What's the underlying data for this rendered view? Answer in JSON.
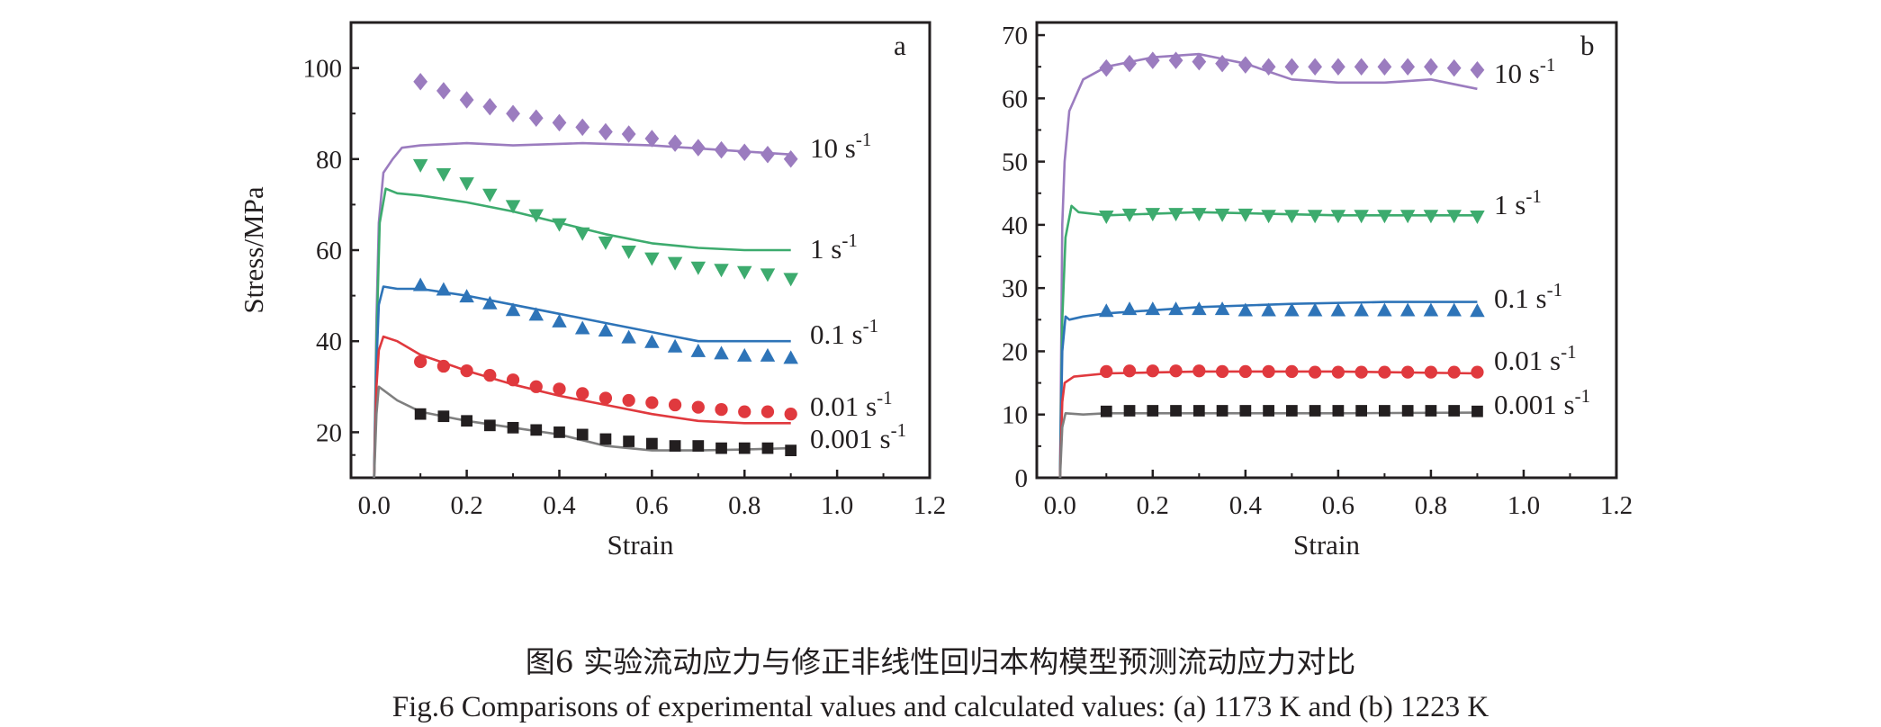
{
  "caption": {
    "chinese": "图6  实验流动应力与修正非线性回归本构模型预测流动应力对比",
    "english": "Fig.6  Comparisons of experimental values and calculated values: (a) 1173 K and (b) 1223 K"
  },
  "colors": {
    "rate_10": "#9b7cbf",
    "rate_1": "#3dab6e",
    "rate_0_1": "#2e74b8",
    "rate_0_01": "#e0393e",
    "rate_0_001": "#231f20",
    "curve_0_001": "#7f7f7f"
  },
  "chart_data": [
    {
      "type": "scatter",
      "panel": "a",
      "xlabel": "Strain",
      "ylabel": "Stress/MPa",
      "xlim": [
        -0.05,
        1.2
      ],
      "ylim": [
        10,
        110
      ],
      "xticks": [
        "0.0",
        "0.2",
        "0.4",
        "0.6",
        "0.8",
        "1.0",
        "1.2"
      ],
      "yticks": [
        "20",
        "40",
        "60",
        "80",
        "100"
      ],
      "series": [
        {
          "label": "10 s",
          "exp": "-1",
          "marker": "diamond",
          "color": "#9b7cbf",
          "x": [
            0.1,
            0.15,
            0.2,
            0.25,
            0.3,
            0.35,
            0.4,
            0.45,
            0.5,
            0.55,
            0.6,
            0.65,
            0.7,
            0.75,
            0.8,
            0.85,
            0.9
          ],
          "y": [
            97,
            95,
            93,
            91.5,
            90,
            89,
            88,
            87,
            86,
            85.5,
            84.5,
            83.5,
            82.5,
            82,
            81.5,
            81,
            80
          ],
          "curve": [
            [
              0,
              10
            ],
            [
              0.005,
              45
            ],
            [
              0.01,
              66
            ],
            [
              0.02,
              77
            ],
            [
              0.04,
              80
            ],
            [
              0.06,
              82.5
            ],
            [
              0.1,
              83
            ],
            [
              0.2,
              83.5
            ],
            [
              0.3,
              83
            ],
            [
              0.45,
              83.5
            ],
            [
              0.6,
              83
            ],
            [
              0.75,
              82
            ],
            [
              0.9,
              81
            ]
          ]
        },
        {
          "label": "1 s",
          "exp": "-1",
          "marker": "triangle-down",
          "color": "#3dab6e",
          "x": [
            0.1,
            0.15,
            0.2,
            0.25,
            0.3,
            0.35,
            0.4,
            0.45,
            0.5,
            0.55,
            0.6,
            0.65,
            0.7,
            0.75,
            0.8,
            0.85,
            0.9
          ],
          "y": [
            78.5,
            76.5,
            74.5,
            72,
            69.5,
            67.5,
            65.5,
            63.5,
            61.5,
            59.5,
            58,
            57,
            56,
            55.5,
            55,
            54.5,
            53.5
          ],
          "curve": [
            [
              0,
              10
            ],
            [
              0.005,
              40
            ],
            [
              0.012,
              66
            ],
            [
              0.025,
              73.5
            ],
            [
              0.05,
              72.5
            ],
            [
              0.1,
              72
            ],
            [
              0.2,
              70.5
            ],
            [
              0.3,
              68.5
            ],
            [
              0.4,
              66
            ],
            [
              0.5,
              63.5
            ],
            [
              0.6,
              61.5
            ],
            [
              0.7,
              60.5
            ],
            [
              0.8,
              60
            ],
            [
              0.9,
              60
            ]
          ]
        },
        {
          "label": "0.1 s",
          "exp": "-1",
          "marker": "triangle-up",
          "color": "#2e74b8",
          "x": [
            0.1,
            0.15,
            0.2,
            0.25,
            0.3,
            0.35,
            0.4,
            0.45,
            0.5,
            0.55,
            0.6,
            0.65,
            0.7,
            0.75,
            0.8,
            0.85,
            0.9
          ],
          "y": [
            52.5,
            51.5,
            50,
            48.5,
            47,
            46,
            44.5,
            43,
            42.5,
            41,
            40,
            39,
            38,
            37.5,
            37,
            37,
            36.5
          ],
          "curve": [
            [
              0,
              10
            ],
            [
              0.005,
              35
            ],
            [
              0.01,
              48
            ],
            [
              0.02,
              52
            ],
            [
              0.05,
              51.5
            ],
            [
              0.1,
              51.5
            ],
            [
              0.2,
              50
            ],
            [
              0.3,
              48
            ],
            [
              0.4,
              46
            ],
            [
              0.5,
              44
            ],
            [
              0.6,
              42
            ],
            [
              0.7,
              40
            ],
            [
              0.8,
              40
            ],
            [
              0.9,
              40
            ]
          ]
        },
        {
          "label": "0.01 s",
          "exp": "-1",
          "marker": "circle",
          "color": "#e0393e",
          "x": [
            0.1,
            0.15,
            0.2,
            0.25,
            0.3,
            0.35,
            0.4,
            0.45,
            0.5,
            0.55,
            0.6,
            0.65,
            0.7,
            0.75,
            0.8,
            0.85,
            0.9
          ],
          "y": [
            35.5,
            34.5,
            33.5,
            32.5,
            31.5,
            30,
            29.5,
            28.5,
            27.5,
            27,
            26.5,
            26,
            25.5,
            25,
            24.5,
            24.5,
            24
          ],
          "curve": [
            [
              0,
              10
            ],
            [
              0.005,
              30
            ],
            [
              0.01,
              38
            ],
            [
              0.02,
              41
            ],
            [
              0.05,
              40
            ],
            [
              0.1,
              37
            ],
            [
              0.2,
              33.5
            ],
            [
              0.3,
              30.5
            ],
            [
              0.4,
              28
            ],
            [
              0.5,
              26
            ],
            [
              0.6,
              24
            ],
            [
              0.7,
              22.5
            ],
            [
              0.8,
              22
            ],
            [
              0.9,
              22
            ]
          ]
        },
        {
          "label": "0.001 s",
          "exp": "-1",
          "marker": "square",
          "color": "#231f20",
          "curve_color": "#7f7f7f",
          "x": [
            0.1,
            0.15,
            0.2,
            0.25,
            0.3,
            0.35,
            0.4,
            0.45,
            0.5,
            0.55,
            0.6,
            0.65,
            0.7,
            0.75,
            0.8,
            0.85,
            0.9
          ],
          "y": [
            24,
            23.5,
            22.5,
            21.5,
            21,
            20.5,
            20,
            19.5,
            18.5,
            18,
            17.5,
            17,
            17,
            16.5,
            16.5,
            16.5,
            16
          ],
          "curve": [
            [
              0,
              10
            ],
            [
              0.005,
              24
            ],
            [
              0.01,
              30
            ],
            [
              0.05,
              27
            ],
            [
              0.1,
              24.5
            ],
            [
              0.2,
              22.5
            ],
            [
              0.3,
              21
            ],
            [
              0.4,
              19.5
            ],
            [
              0.5,
              17
            ],
            [
              0.6,
              16
            ],
            [
              0.7,
              16
            ],
            [
              0.8,
              16.2
            ],
            [
              0.9,
              16.5
            ]
          ]
        }
      ]
    },
    {
      "type": "scatter",
      "panel": "b",
      "xlabel": "Strain",
      "ylabel": "",
      "xlim": [
        -0.05,
        1.2
      ],
      "ylim": [
        0,
        72
      ],
      "xticks": [
        "0.0",
        "0.2",
        "0.4",
        "0.6",
        "0.8",
        "1.0",
        "1.2"
      ],
      "yticks": [
        "0",
        "10",
        "20",
        "30",
        "40",
        "50",
        "60",
        "70"
      ],
      "series": [
        {
          "label": "10 s",
          "exp": "-1",
          "marker": "diamond",
          "color": "#9b7cbf",
          "x": [
            0.1,
            0.15,
            0.2,
            0.25,
            0.3,
            0.35,
            0.4,
            0.45,
            0.5,
            0.55,
            0.6,
            0.65,
            0.7,
            0.75,
            0.8,
            0.85,
            0.9
          ],
          "y": [
            64.8,
            65.5,
            66,
            66,
            65.8,
            65.5,
            65.3,
            65,
            65,
            65,
            65,
            65,
            65,
            65,
            65,
            64.8,
            64.5
          ],
          "curve": [
            [
              0,
              0
            ],
            [
              0.005,
              40
            ],
            [
              0.01,
              50
            ],
            [
              0.02,
              58
            ],
            [
              0.05,
              63
            ],
            [
              0.1,
              65
            ],
            [
              0.2,
              66.5
            ],
            [
              0.3,
              67
            ],
            [
              0.4,
              65.5
            ],
            [
              0.5,
              63
            ],
            [
              0.6,
              62.5
            ],
            [
              0.7,
              62.5
            ],
            [
              0.8,
              63
            ],
            [
              0.9,
              61.5
            ]
          ]
        },
        {
          "label": "1 s",
          "exp": "-1",
          "marker": "triangle-down",
          "color": "#3dab6e",
          "x": [
            0.1,
            0.15,
            0.2,
            0.25,
            0.3,
            0.35,
            0.4,
            0.45,
            0.5,
            0.55,
            0.6,
            0.65,
            0.7,
            0.75,
            0.8,
            0.85,
            0.9
          ],
          "y": [
            41.2,
            41.5,
            41.6,
            41.6,
            41.6,
            41.5,
            41.5,
            41.3,
            41.3,
            41.3,
            41.3,
            41.3,
            41.3,
            41.3,
            41.3,
            41.3,
            41.2
          ],
          "curve": [
            [
              0,
              0
            ],
            [
              0.005,
              25
            ],
            [
              0.012,
              38
            ],
            [
              0.025,
              43
            ],
            [
              0.04,
              42
            ],
            [
              0.1,
              41.5
            ],
            [
              0.3,
              42
            ],
            [
              0.6,
              41.5
            ],
            [
              0.9,
              41.5
            ]
          ]
        },
        {
          "label": "0.1 s",
          "exp": "-1",
          "marker": "triangle-up",
          "color": "#2e74b8",
          "x": [
            0.1,
            0.15,
            0.2,
            0.25,
            0.3,
            0.35,
            0.4,
            0.45,
            0.5,
            0.55,
            0.6,
            0.65,
            0.7,
            0.75,
            0.8,
            0.85,
            0.9
          ],
          "y": [
            26.5,
            26.8,
            26.8,
            26.8,
            26.8,
            26.8,
            26.6,
            26.6,
            26.6,
            26.6,
            26.6,
            26.6,
            26.6,
            26.6,
            26.6,
            26.6,
            26.5
          ],
          "curve": [
            [
              0,
              0
            ],
            [
              0.005,
              20
            ],
            [
              0.012,
              25.5
            ],
            [
              0.02,
              25
            ],
            [
              0.05,
              25.5
            ],
            [
              0.1,
              26
            ],
            [
              0.3,
              27
            ],
            [
              0.5,
              27.5
            ],
            [
              0.7,
              27.8
            ],
            [
              0.9,
              27.8
            ]
          ]
        },
        {
          "label": "0.01 s",
          "exp": "-1",
          "marker": "circle",
          "color": "#e0393e",
          "x": [
            0.1,
            0.15,
            0.2,
            0.25,
            0.3,
            0.35,
            0.4,
            0.45,
            0.5,
            0.55,
            0.6,
            0.65,
            0.7,
            0.75,
            0.8,
            0.85,
            0.9
          ],
          "y": [
            16.8,
            16.9,
            16.9,
            16.9,
            16.9,
            16.8,
            16.8,
            16.8,
            16.8,
            16.7,
            16.7,
            16.7,
            16.7,
            16.7,
            16.7,
            16.7,
            16.7
          ],
          "curve": [
            [
              0,
              0
            ],
            [
              0.005,
              12
            ],
            [
              0.01,
              15
            ],
            [
              0.03,
              16
            ],
            [
              0.1,
              16.5
            ],
            [
              0.3,
              16.8
            ],
            [
              0.6,
              16.8
            ],
            [
              0.9,
              16.5
            ]
          ]
        },
        {
          "label": "0.001 s",
          "exp": "-1",
          "marker": "square",
          "color": "#231f20",
          "curve_color": "#7f7f7f",
          "x": [
            0.1,
            0.15,
            0.2,
            0.25,
            0.3,
            0.35,
            0.4,
            0.45,
            0.5,
            0.55,
            0.6,
            0.65,
            0.7,
            0.75,
            0.8,
            0.85,
            0.9
          ],
          "y": [
            10.5,
            10.6,
            10.6,
            10.6,
            10.6,
            10.6,
            10.6,
            10.6,
            10.6,
            10.6,
            10.6,
            10.6,
            10.6,
            10.6,
            10.6,
            10.6,
            10.5
          ],
          "curve": [
            [
              0,
              0
            ],
            [
              0.005,
              8
            ],
            [
              0.012,
              10.2
            ],
            [
              0.05,
              10
            ],
            [
              0.1,
              10.2
            ],
            [
              0.3,
              10.2
            ],
            [
              0.6,
              10.2
            ],
            [
              0.9,
              10.3
            ]
          ]
        }
      ]
    }
  ]
}
